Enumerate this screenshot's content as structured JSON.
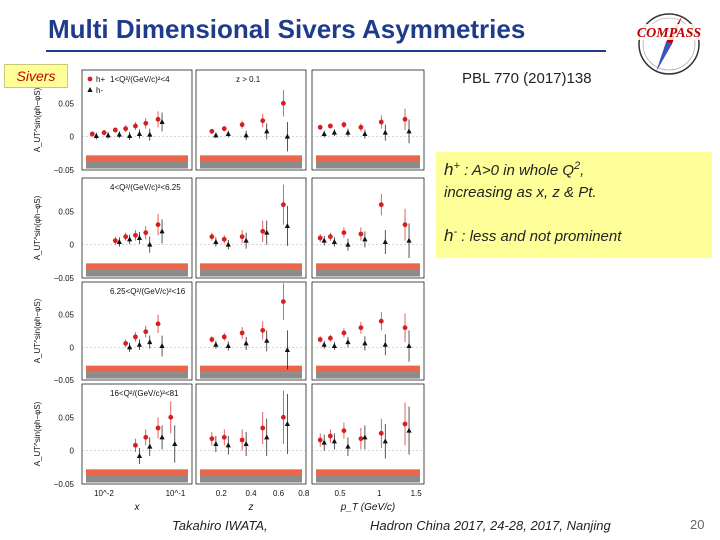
{
  "slide": {
    "title": "Multi Dimensional Sivers Asymmetries",
    "tag": "Sivers",
    "reference": "PBL 770 (2017)138",
    "logo_text": "COMPASS",
    "page_number": "20"
  },
  "callout": {
    "hplus_h": "h",
    "hplus_sign": "+",
    "hplus_text": " : A>0 in whole Q",
    "hplus_exp": "2",
    "hplus_tail": ",",
    "line2": "increasing  as x, z & Pt.",
    "hminus_h": "h",
    "hminus_sign": "-",
    "hminus_text": " : less and  not prominent"
  },
  "footer": {
    "author": "Takahiro IWATA,",
    "event": "Hadron China 2017, 24-28, 2017, Nanjing"
  },
  "chart_data": {
    "type": "scatter",
    "legend": [
      "h+",
      "h-"
    ],
    "ylabel": "A_UT^sin(φh−φS)",
    "columns": [
      {
        "xlabel": "x",
        "ticks": [
          "10^-2",
          "10^-1"
        ],
        "log": true,
        "xlim": [
          0.004,
          0.6
        ]
      },
      {
        "xlabel": "z",
        "ticks": [
          "0.2",
          "0.4",
          "0.6",
          "0.8"
        ],
        "log": false,
        "xlim": [
          0.1,
          0.9
        ]
      },
      {
        "xlabel": "p_T (GeV/c)",
        "ticks": [
          "0.5",
          "1",
          "1.5"
        ],
        "log": false,
        "xlim": [
          0.05,
          1.7
        ]
      }
    ],
    "rows": [
      {
        "label": "1<Q²/(GeV/c)²<4",
        "cut": "z > 0.1",
        "ylim": [
          -0.05,
          0.1
        ],
        "yticks": [
          "0.05",
          "0",
          "−0.05"
        ],
        "series": [
          {
            "name": "h+",
            "panels": [
              {
                "x": [
                  0.007,
                  0.012,
                  0.02,
                  0.032,
                  0.05,
                  0.08,
                  0.14
                ],
                "y": [
                  0.004,
                  0.006,
                  0.01,
                  0.012,
                  0.016,
                  0.02,
                  0.026
                ],
                "err": [
                  0.004,
                  0.004,
                  0.004,
                  0.005,
                  0.006,
                  0.008,
                  0.012
                ]
              },
              {
                "x": [
                  0.23,
                  0.32,
                  0.45,
                  0.6,
                  0.75
                ],
                "y": [
                  0.008,
                  0.012,
                  0.018,
                  0.024,
                  0.05
                ],
                "err": [
                  0.003,
                  0.004,
                  0.006,
                  0.01,
                  0.02
                ]
              },
              {
                "x": [
                  0.2,
                  0.35,
                  0.55,
                  0.8,
                  1.1,
                  1.45
                ],
                "y": [
                  0.014,
                  0.016,
                  0.018,
                  0.014,
                  0.022,
                  0.026
                ],
                "err": [
                  0.004,
                  0.004,
                  0.005,
                  0.006,
                  0.01,
                  0.016
                ]
              }
            ]
          },
          {
            "name": "h-",
            "panels": [
              {
                "x": [
                  0.007,
                  0.012,
                  0.02,
                  0.032,
                  0.05,
                  0.08,
                  0.14
                ],
                "y": [
                  0.001,
                  0.002,
                  0.003,
                  0.001,
                  0.004,
                  0.003,
                  0.022
                ],
                "err": [
                  0.005,
                  0.005,
                  0.005,
                  0.006,
                  0.007,
                  0.009,
                  0.014
                ]
              },
              {
                "x": [
                  0.23,
                  0.32,
                  0.45,
                  0.6,
                  0.75
                ],
                "y": [
                  0.002,
                  0.004,
                  0.002,
                  0.008,
                  0.0
                ],
                "err": [
                  0.004,
                  0.005,
                  0.007,
                  0.012,
                  0.022
                ]
              },
              {
                "x": [
                  0.2,
                  0.35,
                  0.55,
                  0.8,
                  1.1,
                  1.45
                ],
                "y": [
                  0.004,
                  0.006,
                  0.006,
                  0.004,
                  0.006,
                  0.008
                ],
                "err": [
                  0.005,
                  0.005,
                  0.006,
                  0.007,
                  0.012,
                  0.018
                ]
              }
            ]
          }
        ]
      },
      {
        "label": "4<Q²/(GeV/c)²<6.25",
        "cut": "",
        "ylim": [
          -0.05,
          0.1
        ],
        "yticks": [
          "0.05",
          "0",
          "−0.05"
        ],
        "series": [
          {
            "name": "h+",
            "panels": [
              {
                "x": [
                  0.02,
                  0.032,
                  0.05,
                  0.08,
                  0.14
                ],
                "y": [
                  0.006,
                  0.012,
                  0.014,
                  0.018,
                  0.03
                ],
                "err": [
                  0.006,
                  0.006,
                  0.008,
                  0.01,
                  0.016
                ]
              },
              {
                "x": [
                  0.23,
                  0.32,
                  0.45,
                  0.6,
                  0.75
                ],
                "y": [
                  0.012,
                  0.008,
                  0.012,
                  0.02,
                  0.06
                ],
                "err": [
                  0.006,
                  0.006,
                  0.01,
                  0.016,
                  0.03
                ]
              },
              {
                "x": [
                  0.2,
                  0.35,
                  0.55,
                  0.8,
                  1.1,
                  1.45
                ],
                "y": [
                  0.01,
                  0.012,
                  0.018,
                  0.016,
                  0.06,
                  0.03
                ],
                "err": [
                  0.006,
                  0.006,
                  0.008,
                  0.01,
                  0.016,
                  0.024
                ]
              }
            ]
          },
          {
            "name": "h-",
            "panels": [
              {
                "x": [
                  0.02,
                  0.032,
                  0.05,
                  0.08,
                  0.14
                ],
                "y": [
                  0.004,
                  0.008,
                  0.01,
                  0.0,
                  0.02
                ],
                "err": [
                  0.007,
                  0.007,
                  0.009,
                  0.012,
                  0.018
                ]
              },
              {
                "x": [
                  0.23,
                  0.32,
                  0.45,
                  0.6,
                  0.75
                ],
                "y": [
                  0.004,
                  0.0,
                  0.006,
                  0.018,
                  0.028
                ],
                "err": [
                  0.007,
                  0.007,
                  0.012,
                  0.018,
                  0.03
                ]
              },
              {
                "x": [
                  0.2,
                  0.35,
                  0.55,
                  0.8,
                  1.1,
                  1.45
                ],
                "y": [
                  0.006,
                  0.004,
                  0.0,
                  0.008,
                  0.004,
                  0.006
                ],
                "err": [
                  0.007,
                  0.007,
                  0.009,
                  0.012,
                  0.018,
                  0.026
                ]
              }
            ]
          }
        ]
      },
      {
        "label": "6.25<Q²/(GeV/c)²<16",
        "cut": "",
        "ylim": [
          -0.05,
          0.1
        ],
        "yticks": [
          "0.05",
          "0",
          "−0.05"
        ],
        "series": [
          {
            "name": "h+",
            "panels": [
              {
                "x": [
                  0.032,
                  0.05,
                  0.08,
                  0.14
                ],
                "y": [
                  0.006,
                  0.016,
                  0.024,
                  0.036
                ],
                "err": [
                  0.006,
                  0.007,
                  0.009,
                  0.014
                ]
              },
              {
                "x": [
                  0.23,
                  0.32,
                  0.45,
                  0.6,
                  0.75
                ],
                "y": [
                  0.012,
                  0.016,
                  0.022,
                  0.026,
                  0.07
                ],
                "err": [
                  0.005,
                  0.006,
                  0.009,
                  0.014,
                  0.028
                ]
              },
              {
                "x": [
                  0.2,
                  0.35,
                  0.55,
                  0.8,
                  1.1,
                  1.45
                ],
                "y": [
                  0.012,
                  0.014,
                  0.022,
                  0.03,
                  0.04,
                  0.03
                ],
                "err": [
                  0.005,
                  0.005,
                  0.007,
                  0.009,
                  0.014,
                  0.022
                ]
              }
            ]
          },
          {
            "name": "h-",
            "panels": [
              {
                "x": [
                  0.032,
                  0.05,
                  0.08,
                  0.14
                ],
                "y": [
                  0.0,
                  0.004,
                  0.008,
                  0.002
                ],
                "err": [
                  0.007,
                  0.008,
                  0.01,
                  0.016
                ]
              },
              {
                "x": [
                  0.23,
                  0.32,
                  0.45,
                  0.6,
                  0.75
                ],
                "y": [
                  0.004,
                  0.002,
                  0.006,
                  0.01,
                  -0.004
                ],
                "err": [
                  0.006,
                  0.007,
                  0.01,
                  0.016,
                  0.03
                ]
              },
              {
                "x": [
                  0.2,
                  0.35,
                  0.55,
                  0.8,
                  1.1,
                  1.45
                ],
                "y": [
                  0.004,
                  0.002,
                  0.008,
                  0.006,
                  0.004,
                  0.002
                ],
                "err": [
                  0.006,
                  0.006,
                  0.008,
                  0.011,
                  0.016,
                  0.024
                ]
              }
            ]
          }
        ]
      },
      {
        "label": "16<Q²/(GeV/c)²<81",
        "cut": "",
        "ylim": [
          -0.05,
          0.1
        ],
        "yticks": [
          "0.05",
          "0",
          "−0.05"
        ],
        "series": [
          {
            "name": "h+",
            "panels": [
              {
                "x": [
                  0.05,
                  0.08,
                  0.14,
                  0.25
                ],
                "y": [
                  0.008,
                  0.02,
                  0.034,
                  0.05
                ],
                "err": [
                  0.01,
                  0.012,
                  0.016,
                  0.024
                ]
              },
              {
                "x": [
                  0.23,
                  0.32,
                  0.45,
                  0.6,
                  0.75
                ],
                "y": [
                  0.018,
                  0.02,
                  0.016,
                  0.034,
                  0.05
                ],
                "err": [
                  0.01,
                  0.012,
                  0.016,
                  0.024,
                  0.04
                ]
              },
              {
                "x": [
                  0.2,
                  0.35,
                  0.55,
                  0.8,
                  1.1,
                  1.45
                ],
                "y": [
                  0.016,
                  0.022,
                  0.03,
                  0.018,
                  0.026,
                  0.04
                ],
                "err": [
                  0.01,
                  0.01,
                  0.012,
                  0.016,
                  0.022,
                  0.032
                ]
              }
            ]
          },
          {
            "name": "h-",
            "panels": [
              {
                "x": [
                  0.05,
                  0.08,
                  0.14,
                  0.25
                ],
                "y": [
                  -0.008,
                  0.006,
                  0.02,
                  0.01
                ],
                "err": [
                  0.012,
                  0.014,
                  0.018,
                  0.028
                ]
              },
              {
                "x": [
                  0.23,
                  0.32,
                  0.45,
                  0.6,
                  0.75
                ],
                "y": [
                  0.01,
                  0.008,
                  0.01,
                  0.02,
                  0.04
                ],
                "err": [
                  0.012,
                  0.014,
                  0.018,
                  0.028,
                  0.045
                ]
              },
              {
                "x": [
                  0.2,
                  0.35,
                  0.55,
                  0.8,
                  1.1,
                  1.45
                ],
                "y": [
                  0.012,
                  0.014,
                  0.006,
                  0.02,
                  0.014,
                  0.03
                ],
                "err": [
                  0.012,
                  0.012,
                  0.014,
                  0.018,
                  0.026,
                  0.036
                ]
              }
            ]
          }
        ]
      }
    ]
  }
}
